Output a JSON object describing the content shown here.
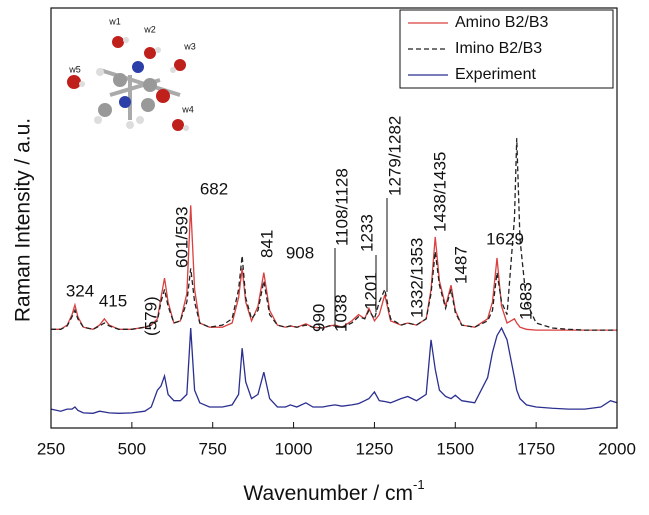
{
  "chart_data": {
    "type": "line",
    "xlabel": "Wavenumber / cm",
    "xlabel_sup": "-1",
    "ylabel": "Raman Intensity / a.u.",
    "xlim": [
      250,
      2000
    ],
    "xticks": [
      250,
      500,
      750,
      1000,
      1250,
      1500,
      1750,
      2000
    ],
    "ylim": [
      0,
      100
    ],
    "legend": "upper right",
    "x": [
      250,
      280,
      300,
      315,
      324,
      333,
      350,
      380,
      400,
      415,
      430,
      460,
      500,
      540,
      560,
      579,
      590,
      601,
      612,
      630,
      650,
      670,
      682,
      694,
      710,
      740,
      780,
      810,
      830,
      841,
      852,
      870,
      890,
      908,
      926,
      950,
      975,
      990,
      1010,
      1038,
      1060,
      1090,
      1110,
      1128,
      1150,
      1180,
      1201,
      1220,
      1233,
      1250,
      1265,
      1282,
      1300,
      1332,
      1353,
      1380,
      1410,
      1425,
      1438,
      1451,
      1470,
      1487,
      1500,
      1520,
      1560,
      1600,
      1615,
      1629,
      1643,
      1660,
      1683,
      1690,
      1700,
      1720,
      1750,
      1800,
      1850,
      1900,
      1950,
      1980,
      2000
    ],
    "series": [
      {
        "name": "Amino B2/B3",
        "color": "#d9403f",
        "dash": false,
        "values": [
          23.5,
          23.5,
          24.5,
          27,
          29.3,
          26.5,
          24,
          23.5,
          24.5,
          26,
          24.5,
          23.5,
          23.5,
          24,
          24.5,
          26,
          31,
          35.7,
          30,
          25,
          25.5,
          32,
          53,
          33,
          25,
          24,
          24,
          25,
          31,
          38,
          30,
          25.5,
          29,
          37,
          28,
          24.5,
          24,
          24.3,
          24,
          24.8,
          24,
          23.8,
          24.3,
          24.5,
          24,
          25.5,
          27,
          26,
          28.5,
          25.5,
          27,
          31.7,
          25.5,
          24.5,
          25,
          24.5,
          26,
          33,
          45.5,
          35,
          29,
          34,
          28,
          24.5,
          24,
          26,
          30,
          40.5,
          29,
          25,
          26,
          25,
          24,
          23.5,
          23.3,
          23.3,
          23.3,
          23.3,
          23.3,
          23.3,
          23.3
        ]
      },
      {
        "name": "Imino B2/B3",
        "color": "#222222",
        "dash": true,
        "values": [
          23.5,
          23.5,
          24.3,
          26.5,
          28,
          26,
          24,
          23.5,
          24.3,
          25,
          24.3,
          23.5,
          23.5,
          24,
          24.5,
          25.5,
          30,
          33,
          29,
          25,
          25.5,
          30,
          38,
          30,
          25,
          24,
          24.5,
          26,
          33,
          41,
          31,
          26,
          28,
          35,
          27,
          24.5,
          24,
          24.3,
          24,
          24.5,
          24,
          23.8,
          24.3,
          24.3,
          24,
          25,
          26.5,
          26,
          28,
          26,
          30,
          33,
          26,
          24.5,
          25,
          24.5,
          26,
          32,
          42,
          34,
          28.5,
          33,
          27.5,
          24.5,
          24,
          25.5,
          28,
          37,
          30,
          27,
          50,
          69,
          45,
          30,
          25,
          23.8,
          23.5,
          23.3,
          23.3,
          23.3,
          23.3
        ]
      },
      {
        "name": "Experiment",
        "color": "#2b2f8f",
        "dash": false,
        "values": [
          4.5,
          4,
          4.5,
          4.5,
          5,
          4.2,
          3.6,
          3.5,
          4,
          3.8,
          3.6,
          3.5,
          3.6,
          4,
          5,
          9,
          10,
          12.4,
          8,
          6.5,
          6.5,
          8,
          23.8,
          9,
          6,
          5,
          5,
          5.5,
          8,
          19,
          11,
          7,
          8,
          13.3,
          7,
          5,
          5,
          5.5,
          5,
          6,
          5,
          5,
          5.3,
          5.5,
          5.2,
          5.5,
          5.8,
          6.5,
          7,
          8.6,
          6.5,
          6.3,
          6,
          7,
          7.5,
          6.5,
          8,
          21,
          14,
          9,
          7.5,
          7,
          7.8,
          6.5,
          6,
          12,
          18,
          22,
          23.8,
          21,
          12,
          9,
          7,
          5.5,
          5,
          4.7,
          4.5,
          4.5,
          5,
          6.5,
          6
        ]
      }
    ],
    "annotations": [
      "324",
      "415",
      "(579)",
      "601/593",
      "682",
      "841",
      "908",
      "990",
      "1038",
      "1108/1128",
      "1201",
      "1233",
      "1279/1282",
      "1332/1353",
      "1438/1435",
      "1487",
      "1629",
      "1683"
    ],
    "inset_labels": [
      "w1",
      "w2",
      "w3",
      "w4",
      "w5"
    ]
  }
}
